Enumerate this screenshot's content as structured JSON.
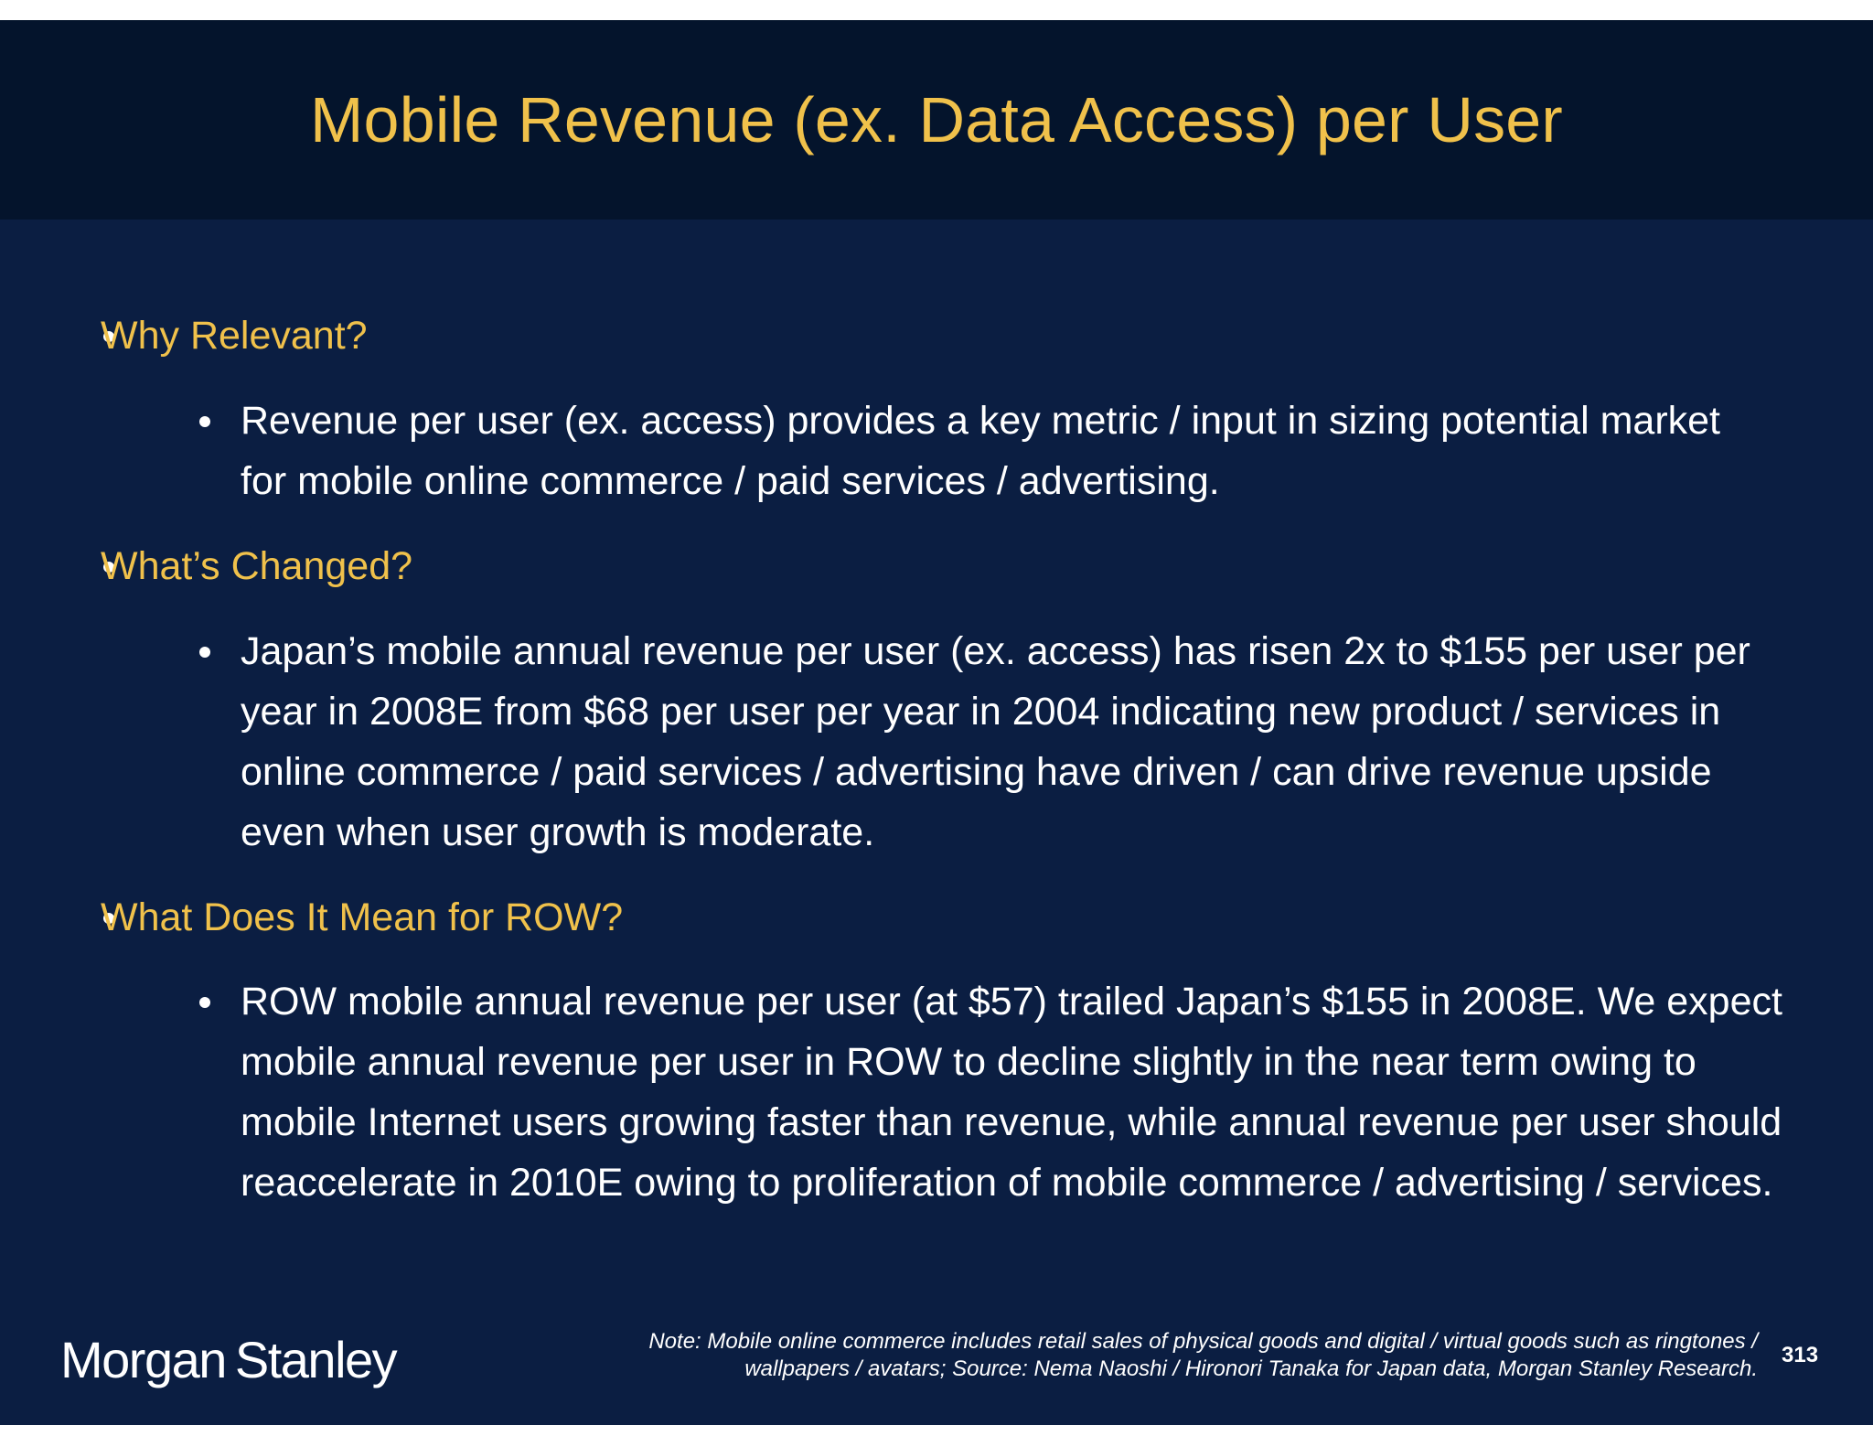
{
  "title": "Mobile Revenue (ex. Data Access) per User",
  "sections": [
    {
      "heading": "Why Relevant?",
      "body": "Revenue per user (ex. access) provides a key metric / input in sizing potential market for mobile online commerce / paid services / advertising."
    },
    {
      "heading": "What’s Changed?",
      "body": "Japan’s mobile annual revenue per user (ex. access) has risen 2x to $155 per user per year in 2008E from $68 per user per year in 2004 indicating new product / services in online commerce / paid services / advertising have driven / can drive revenue upside even when user growth is moderate."
    },
    {
      "heading": "What Does It Mean for ROW?",
      "body": "ROW mobile annual revenue per user (at $57) trailed Japan’s $155 in 2008E. We expect mobile annual revenue per user in ROW to decline slightly in the near term owing to mobile Internet users growing faster than revenue, while annual revenue per user should reaccelerate in 2010E owing to proliferation of mobile commerce / advertising / services."
    }
  ],
  "footer": {
    "logo_word1": "Morgan",
    "logo_word2": "Stanley",
    "note_line1": "Note: Mobile online commerce includes retail sales of physical goods and digital / virtual goods such as ringtones /",
    "note_line2": "wallpapers / avatars; Source: Nema Naoshi / Hironori Tanaka for Japan data, Morgan Stanley Research.",
    "page_number": "313"
  },
  "colors": {
    "background": "#0b1e42",
    "title_bar": "#04142c",
    "accent": "#f0c14b",
    "text": "#ffffff"
  }
}
